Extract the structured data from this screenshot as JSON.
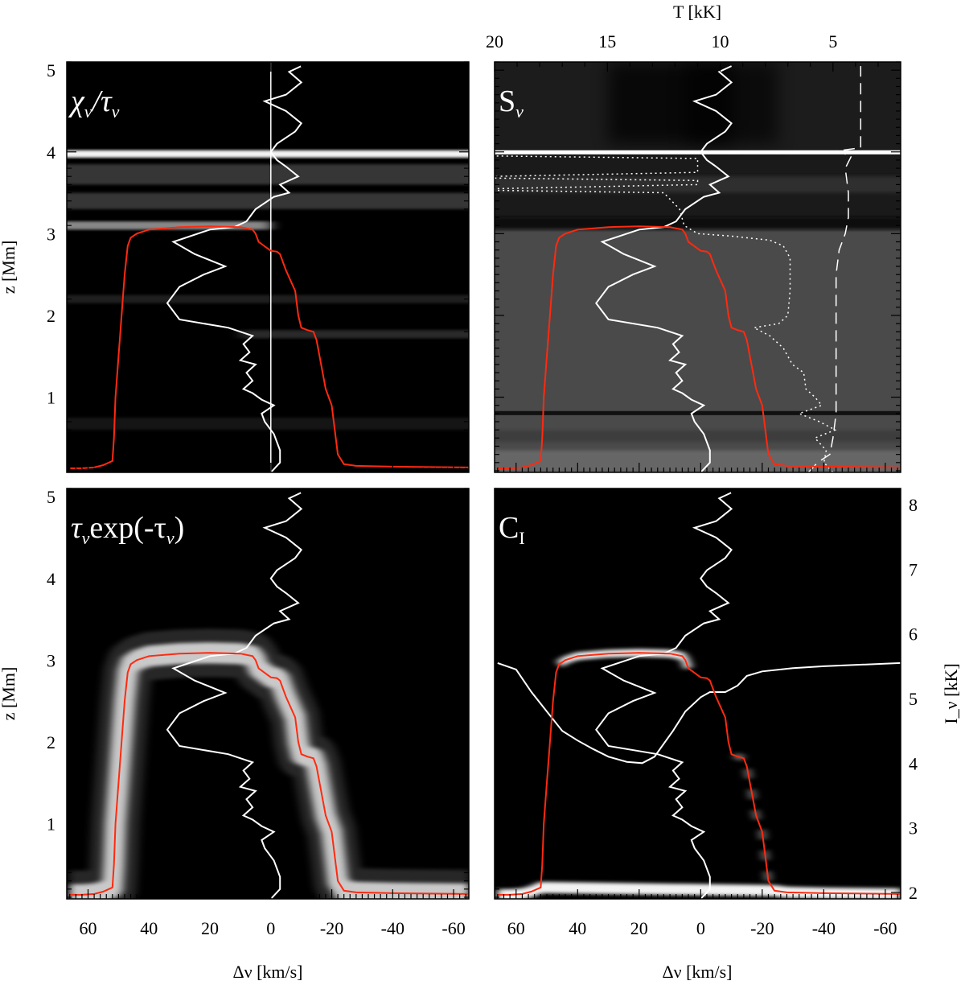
{
  "chart_data": {
    "type": "heatmap",
    "description_axes": {
      "xlabel": "Δν [km/s]",
      "ylabel": "z [Mm]",
      "top_xlabel": "T [kK]",
      "right_ylabel": "I_ν [kK]",
      "xlim": [
        67,
        -65
      ],
      "ylim": [
        0.08,
        5.1
      ],
      "x_ticks": [
        60,
        40,
        20,
        0,
        -20,
        -40,
        -60
      ],
      "x_tick_labels": [
        "60",
        "40",
        "20",
        "0",
        "-20",
        "-40",
        "-60"
      ],
      "y_ticks": [
        1,
        2,
        3,
        4,
        5
      ],
      "y_tick_labels": [
        "1",
        "2",
        "3",
        "4",
        "5"
      ],
      "top_ticks": [
        20,
        15,
        10,
        5
      ],
      "top_tick_labels": [
        "20",
        "15",
        "10",
        "5"
      ],
      "top_lim": [
        20,
        2
      ],
      "right_ticks": [
        2,
        3,
        4,
        5,
        6,
        7,
        8
      ],
      "right_tick_labels": [
        "2",
        "3",
        "4",
        "5",
        "6",
        "7",
        "8"
      ],
      "right_lim": [
        1.9,
        8.25
      ]
    },
    "panels": [
      {
        "name": "chi",
        "label_main": "χ",
        "label_sub": "ν",
        "label_mid": "/τ",
        "label_sub2": "ν"
      },
      {
        "name": "source",
        "label_main": "S",
        "label_sub": "ν"
      },
      {
        "name": "tau",
        "label_main": "τ",
        "label_sub": "ν",
        "label_mid": "exp(-τ",
        "label_sub2": "ν",
        "label_end": ")"
      },
      {
        "name": "contrib",
        "label_main": "C",
        "label_sub": "I"
      }
    ],
    "series": {
      "tau_unity": {
        "color": "#ff2a10",
        "points": [
          [
            -65,
            0.14
          ],
          [
            -40,
            0.15
          ],
          [
            -28,
            0.16
          ],
          [
            -24,
            0.18
          ],
          [
            -22,
            0.3
          ],
          [
            -21,
            0.6
          ],
          [
            -20,
            0.9
          ],
          [
            -18,
            1.1
          ],
          [
            -17,
            1.3
          ],
          [
            -16,
            1.5
          ],
          [
            -15,
            1.7
          ],
          [
            -14,
            1.8
          ],
          [
            -12,
            1.82
          ],
          [
            -10,
            1.85
          ],
          [
            -9,
            2.0
          ],
          [
            -8,
            2.3
          ],
          [
            -5,
            2.55
          ],
          [
            -4,
            2.65
          ],
          [
            -3,
            2.75
          ],
          [
            -2,
            2.78
          ],
          [
            0,
            2.79
          ],
          [
            4,
            2.9
          ],
          [
            5,
            3.0
          ],
          [
            6,
            3.05
          ],
          [
            10,
            3.08
          ],
          [
            20,
            3.09
          ],
          [
            30,
            3.08
          ],
          [
            40,
            3.05
          ],
          [
            44,
            3.0
          ],
          [
            46,
            2.95
          ],
          [
            47,
            2.85
          ],
          [
            48,
            2.5
          ],
          [
            49,
            2.0
          ],
          [
            50,
            1.5
          ],
          [
            51,
            1.0
          ],
          [
            51.5,
            0.5
          ],
          [
            52,
            0.22
          ],
          [
            55,
            0.17
          ],
          [
            58,
            0.14
          ],
          [
            62,
            0.13
          ],
          [
            66,
            0.13
          ]
        ]
      },
      "velocity": {
        "color": "#ffffff",
        "points": [
          [
            0,
            0.08
          ],
          [
            -3,
            0.2
          ],
          [
            -3,
            0.35
          ],
          [
            -1,
            0.55
          ],
          [
            2,
            0.7
          ],
          [
            3,
            0.8
          ],
          [
            -1,
            0.9
          ],
          [
            3,
            0.97
          ],
          [
            6,
            1.05
          ],
          [
            9,
            1.1
          ],
          [
            6,
            1.2
          ],
          [
            8,
            1.3
          ],
          [
            5,
            1.4
          ],
          [
            10,
            1.45
          ],
          [
            7,
            1.55
          ],
          [
            9,
            1.65
          ],
          [
            6,
            1.75
          ],
          [
            14,
            1.85
          ],
          [
            30,
            1.95
          ],
          [
            34,
            2.15
          ],
          [
            30,
            2.35
          ],
          [
            22,
            2.5
          ],
          [
            15,
            2.6
          ],
          [
            25,
            2.75
          ],
          [
            32,
            2.9
          ],
          [
            20,
            3.05
          ],
          [
            12,
            3.08
          ],
          [
            8,
            3.15
          ],
          [
            5,
            3.3
          ],
          [
            -1,
            3.45
          ],
          [
            -6,
            3.5
          ],
          [
            -3,
            3.6
          ],
          [
            -9,
            3.7
          ],
          [
            -5,
            3.82
          ],
          [
            -2,
            3.9
          ],
          [
            0,
            4.0
          ],
          [
            -2,
            4.1
          ],
          [
            -8,
            4.25
          ],
          [
            -10,
            4.35
          ],
          [
            -5,
            4.5
          ],
          [
            2,
            4.62
          ],
          [
            -5,
            4.7
          ],
          [
            -10,
            4.85
          ],
          [
            -6,
            4.98
          ],
          [
            -10,
            5.05
          ]
        ]
      },
      "temperature": {
        "color": "#ffffff",
        "style": "dotted",
        "unit": "kK",
        "points": [
          [
            5.0,
            0.08
          ],
          [
            5.4,
            0.2
          ],
          [
            5.3,
            0.35
          ],
          [
            5.8,
            0.5
          ],
          [
            4.9,
            0.6
          ],
          [
            5.6,
            0.7
          ],
          [
            6.5,
            0.8
          ],
          [
            5.5,
            0.9
          ],
          [
            5.8,
            1.0
          ],
          [
            6.2,
            1.1
          ],
          [
            6.3,
            1.3
          ],
          [
            6.8,
            1.4
          ],
          [
            7.2,
            1.6
          ],
          [
            7.8,
            1.75
          ],
          [
            8.5,
            1.85
          ],
          [
            7.4,
            1.9
          ],
          [
            7.0,
            2.0
          ],
          [
            6.9,
            2.3
          ],
          [
            6.9,
            2.7
          ],
          [
            7.2,
            2.85
          ],
          [
            7.8,
            2.92
          ],
          [
            9.5,
            2.97
          ],
          [
            11.0,
            3.0
          ],
          [
            11.6,
            3.1
          ],
          [
            11.8,
            3.3
          ],
          [
            12.5,
            3.5
          ],
          [
            20,
            3.53
          ],
          [
            20,
            3.55
          ],
          [
            11,
            3.6
          ],
          [
            11,
            3.65
          ],
          [
            20,
            3.68
          ],
          [
            20,
            3.7
          ],
          [
            11,
            3.75
          ],
          [
            11,
            3.9
          ],
          [
            11,
            3.92
          ],
          [
            20,
            3.95
          ],
          [
            20,
            4.0
          ],
          [
            10,
            4.0
          ]
        ]
      },
      "microturbulence": {
        "color": "#ffffff",
        "style": "dashed",
        "points": [
          [
            -35,
            0.08
          ],
          [
            -38,
            0.2
          ],
          [
            -42,
            0.3
          ],
          [
            -43,
            0.5
          ],
          [
            -44,
            0.8
          ],
          [
            -44,
            1.2
          ],
          [
            -44,
            1.6
          ],
          [
            -44,
            2.0
          ],
          [
            -44,
            2.5
          ],
          [
            -45,
            2.8
          ],
          [
            -47,
            3.0
          ],
          [
            -48,
            3.2
          ],
          [
            -48,
            3.5
          ],
          [
            -47,
            3.8
          ],
          [
            -49,
            3.95
          ],
          [
            -44,
            4.01
          ],
          [
            -52,
            4.05
          ],
          [
            -52,
            4.5
          ],
          [
            -52,
            5.05
          ]
        ]
      },
      "intensity": {
        "color": "#ffffff",
        "unit": "kK",
        "points": [
          [
            66,
            5.55
          ],
          [
            60,
            5.45
          ],
          [
            55,
            5.1
          ],
          [
            50,
            4.8
          ],
          [
            45,
            4.5
          ],
          [
            40,
            4.35
          ],
          [
            35,
            4.22
          ],
          [
            30,
            4.1
          ],
          [
            24,
            4.02
          ],
          [
            19,
            4.0
          ],
          [
            15,
            4.1
          ],
          [
            12,
            4.3
          ],
          [
            9,
            4.5
          ],
          [
            5,
            4.8
          ],
          [
            0,
            5.02
          ],
          [
            -3,
            5.1
          ],
          [
            -8,
            5.1
          ],
          [
            -12,
            5.2
          ],
          [
            -15,
            5.35
          ],
          [
            -20,
            5.42
          ],
          [
            -30,
            5.47
          ],
          [
            -40,
            5.5
          ],
          [
            -50,
            5.52
          ],
          [
            -65,
            5.55
          ]
        ]
      }
    }
  }
}
